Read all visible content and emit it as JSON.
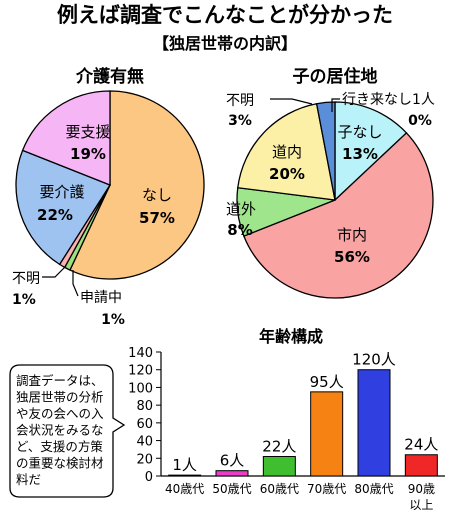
{
  "header": {
    "title": "例えば調査でこんなことが分かった",
    "subtitle": "【独居世帯の内訳】"
  },
  "note": {
    "lines": [
      "調査データは、",
      "独居世帯の分析",
      "や友の会への入",
      "会状況をみるな",
      "ど、支援の方策",
      "の重要な検討材",
      "料だ"
    ]
  },
  "chart_data": [
    {
      "type": "pie",
      "title": "介護有無",
      "slices": [
        {
          "label": "なし",
          "value": 57,
          "display": "57%",
          "color": "#fcc683"
        },
        {
          "label": "申請中",
          "value": 1,
          "display": "1%",
          "color": "#9dde7d"
        },
        {
          "label": "不明",
          "value": 1,
          "display": "1%",
          "color": "#f9b1b1"
        },
        {
          "label": "要介護",
          "value": 22,
          "display": "22%",
          "color": "#9fc3f1"
        },
        {
          "label": "要支援",
          "value": 19,
          "display": "19%",
          "color": "#f6b5f5"
        }
      ]
    },
    {
      "type": "pie",
      "title": "子の居住地",
      "slices": [
        {
          "label": "子なし",
          "value": 13,
          "display": "13%",
          "color": "#b9f2f8"
        },
        {
          "label": "市内",
          "value": 56,
          "display": "56%",
          "color": "#f9a3a3"
        },
        {
          "label": "道外",
          "value": 8,
          "display": "8%",
          "color": "#9fe58c"
        },
        {
          "label": "道内",
          "value": 20,
          "display": "20%",
          "color": "#fbf0a6"
        },
        {
          "label": "不明",
          "value": 3,
          "display": "3%",
          "color": "#5b8ed8"
        },
        {
          "label": "行き来なし1人",
          "value": 0,
          "display": "0%",
          "color": "#ffffff"
        }
      ]
    },
    {
      "type": "bar",
      "title": "年齢構成",
      "categories": [
        "40歳代",
        "50歳代",
        "60歳代",
        "70歳代",
        "80歳代",
        "90歳以上"
      ],
      "values": [
        1,
        6,
        22,
        95,
        120,
        24
      ],
      "value_labels": [
        "1人",
        "6人",
        "22人",
        "95人",
        "120人",
        "24人"
      ],
      "colors": [
        "#ffffff",
        "#e83ec8",
        "#3fbf2f",
        "#f78214",
        "#2f3fe0",
        "#ef2727"
      ],
      "ylim": [
        0,
        140
      ],
      "yticks": [
        0,
        20,
        40,
        60,
        80,
        100,
        120,
        140
      ],
      "grid": false
    }
  ]
}
